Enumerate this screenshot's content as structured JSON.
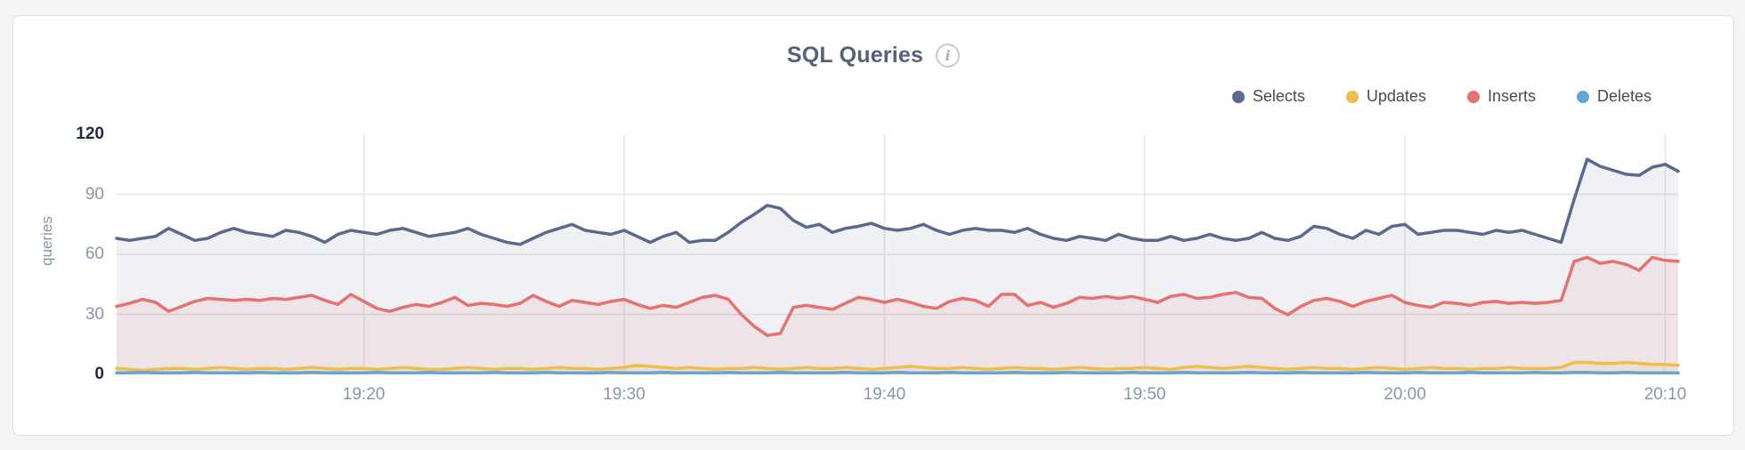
{
  "page": {
    "background": "#f3f4f4"
  },
  "card": {
    "background": "#ffffff",
    "border_color": "#e0e0e0"
  },
  "header": {
    "title": "SQL Queries",
    "info_glyph": "i"
  },
  "axis": {
    "tick_color": "#8a94aa",
    "tick_emphasis_color": "#1f2a47",
    "grid_color": "#e6e6e6",
    "ylabel_color": "#8a94aa"
  },
  "chart_data": {
    "type": "line",
    "title": "SQL Queries",
    "xlabel": "",
    "ylabel": "queries",
    "ylim": [
      0,
      120
    ],
    "grid": true,
    "legend_position": "top-right",
    "x_description": "time of day, one point every 30 seconds from ~19:10:30 to ~20:10:30",
    "x_ticks": [
      {
        "label": "19:20",
        "index": 19
      },
      {
        "label": "19:30",
        "index": 39
      },
      {
        "label": "19:40",
        "index": 59
      },
      {
        "label": "19:50",
        "index": 79
      },
      {
        "label": "20:00",
        "index": 99
      },
      {
        "label": "20:10",
        "index": 119
      }
    ],
    "y_ticks": [
      {
        "label": "120",
        "value": 120,
        "emphasis": true,
        "gridline": false
      },
      {
        "label": "90",
        "value": 90,
        "emphasis": false,
        "gridline": true
      },
      {
        "label": "60",
        "value": 60,
        "emphasis": false,
        "gridline": true
      },
      {
        "label": "30",
        "value": 30,
        "emphasis": false,
        "gridline": true
      },
      {
        "label": "0",
        "value": 0,
        "emphasis": true,
        "gridline": false
      }
    ],
    "series": [
      {
        "name": "Selects",
        "color": "#5b698c",
        "fill_opacity": 0.09,
        "values": [
          68,
          67,
          68,
          69,
          73,
          70,
          67,
          68,
          71,
          73,
          71,
          70,
          69,
          72,
          71,
          69,
          66,
          70,
          72,
          71,
          70,
          72,
          73,
          71,
          69,
          70,
          71,
          73,
          70,
          68,
          66,
          65,
          68,
          71,
          73,
          75,
          72,
          71,
          70,
          72,
          69,
          66,
          69,
          71,
          66,
          67,
          67,
          71,
          76,
          80,
          84.5,
          83,
          77,
          73.5,
          75,
          71,
          73,
          74,
          75.5,
          73,
          72,
          73,
          75,
          72,
          70,
          72,
          73,
          72,
          72,
          71,
          73,
          70,
          68,
          67,
          69,
          68,
          67,
          70,
          68,
          67,
          67,
          69,
          67,
          68,
          70,
          68,
          67,
          68,
          71,
          68,
          67,
          69,
          74,
          73,
          70,
          68,
          72,
          70,
          74,
          75,
          70,
          71,
          72,
          72,
          71,
          70,
          72,
          71,
          72,
          70,
          68,
          66,
          87.5,
          107.5,
          104,
          102,
          100,
          99.5,
          103.5,
          105,
          101.5
        ]
      },
      {
        "name": "Updates",
        "color": "#ecbf4e",
        "fill_opacity": 0.12,
        "values": [
          3,
          2.5,
          2,
          2.5,
          3,
          3,
          2.5,
          3,
          3.5,
          3,
          2.5,
          3,
          3,
          2.5,
          3,
          3.5,
          3,
          2.5,
          3,
          3,
          2.5,
          3,
          3.5,
          3,
          2.5,
          2.5,
          3,
          3.5,
          3,
          2.5,
          3,
          3,
          2.5,
          3,
          3.5,
          3,
          3,
          2.5,
          3,
          3.5,
          4.5,
          4,
          3.5,
          3,
          3.5,
          3,
          2.5,
          3,
          3,
          3.5,
          3,
          2.5,
          3,
          3.5,
          3,
          3,
          3.5,
          3,
          2.5,
          3,
          3.5,
          4,
          3.5,
          3,
          3,
          3.5,
          3,
          2.5,
          3,
          3.5,
          3,
          3,
          2.5,
          3,
          3.5,
          3,
          2.5,
          3,
          3,
          3.5,
          3,
          2.5,
          3.5,
          4,
          3.5,
          3,
          3.5,
          4,
          3.5,
          3,
          2.5,
          3,
          3.5,
          3,
          3,
          2.5,
          3,
          3.5,
          3,
          2.5,
          3,
          3.5,
          3,
          3,
          2.5,
          3,
          3,
          3.5,
          3,
          3,
          3,
          3.5,
          6,
          6,
          5.5,
          5.5,
          6,
          5.5,
          5,
          5,
          4.5
        ]
      },
      {
        "name": "Inserts",
        "color": "#e57170",
        "fill_opacity": 0.1,
        "values": [
          34,
          35.5,
          37.5,
          36,
          31.5,
          34,
          36.5,
          38,
          37.5,
          37,
          37.5,
          37,
          38,
          37.5,
          38.5,
          39.5,
          37,
          35,
          40,
          36.5,
          33,
          31.5,
          33.5,
          35,
          34,
          36,
          38.5,
          34.5,
          35.5,
          35,
          34,
          35.5,
          39.5,
          36.5,
          34,
          37,
          36,
          35,
          36.5,
          37.5,
          35,
          33,
          34.5,
          33.5,
          36,
          38.5,
          39.5,
          37.5,
          30,
          24,
          19.5,
          20.5,
          33.5,
          34.5,
          33.5,
          32.5,
          35.5,
          38.5,
          37.5,
          36,
          37.5,
          36,
          34,
          33,
          36.5,
          38,
          37,
          34,
          40,
          40,
          34.5,
          36,
          33.5,
          35.5,
          38.5,
          38,
          39,
          38,
          39,
          37.5,
          36,
          39,
          40,
          38,
          38.5,
          40,
          41,
          38.5,
          38,
          33,
          29.8,
          34,
          37,
          38,
          36.5,
          34,
          36.5,
          38,
          39.5,
          36,
          34.5,
          33.5,
          36,
          35.5,
          34.5,
          36,
          36.5,
          35.5,
          36,
          35.5,
          36,
          37,
          56.5,
          58.5,
          55.5,
          56.5,
          55,
          52,
          58.5,
          57,
          56.5
        ]
      },
      {
        "name": "Deletes",
        "color": "#63a5d8",
        "fill_opacity": 0.18,
        "values": [
          0.8,
          0.8,
          1,
          0.8,
          0.8,
          0.8,
          1,
          0.8,
          0.8,
          0.8,
          0.8,
          1,
          0.8,
          0.8,
          0.8,
          1,
          0.8,
          0.8,
          0.8,
          0.8,
          1,
          0.8,
          0.8,
          0.8,
          1,
          0.8,
          0.8,
          0.8,
          0.8,
          1,
          0.8,
          0.8,
          0.8,
          1,
          0.8,
          0.8,
          0.8,
          0.8,
          1,
          0.8,
          0.8,
          0.8,
          1,
          0.8,
          0.8,
          0.8,
          0.8,
          1,
          0.8,
          0.8,
          0.8,
          1,
          0.8,
          0.8,
          0.8,
          0.8,
          1,
          0.8,
          0.8,
          0.8,
          1,
          0.8,
          0.8,
          0.8,
          1,
          0.8,
          0.8,
          0.8,
          0.8,
          1,
          0.8,
          0.8,
          0.8,
          1,
          0.8,
          0.8,
          0.8,
          0.8,
          1,
          0.8,
          0.8,
          0.8,
          1,
          0.8,
          0.8,
          0.8,
          0.8,
          1,
          0.8,
          0.8,
          0.8,
          1,
          0.8,
          0.8,
          0.8,
          0.8,
          1,
          0.8,
          0.8,
          0.8,
          1,
          0.8,
          0.8,
          0.8,
          1,
          0.8,
          0.8,
          0.8,
          0.8,
          1,
          0.8,
          0.8,
          1,
          1,
          0.8,
          0.8,
          1,
          0.8,
          0.8,
          0.8,
          0.8
        ]
      }
    ]
  }
}
